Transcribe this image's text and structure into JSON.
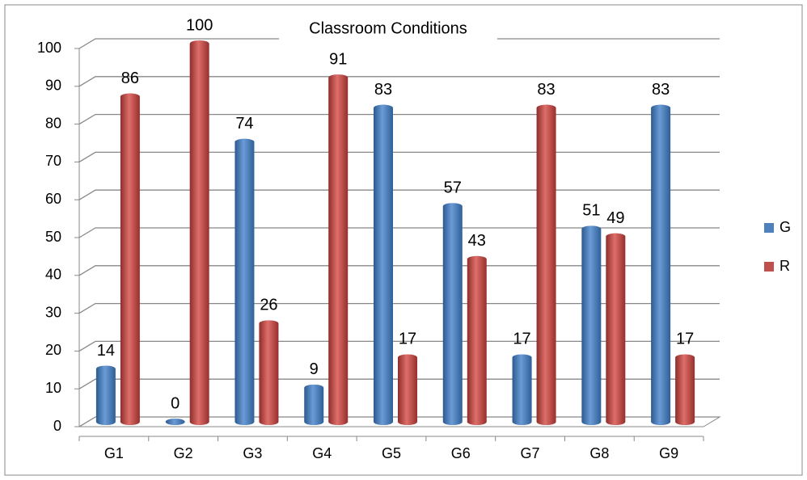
{
  "chart_data": {
    "type": "bar",
    "title": "Classroom Conditions",
    "categories": [
      "G1",
      "G2",
      "G3",
      "G4",
      "G5",
      "G6",
      "G7",
      "G8",
      "G9"
    ],
    "series": [
      {
        "name": "G",
        "color": "#4f81bd",
        "values": [
          14,
          0,
          74,
          9,
          83,
          57,
          17,
          51,
          83
        ]
      },
      {
        "name": "R",
        "color": "#c0504d",
        "values": [
          86,
          100,
          26,
          91,
          17,
          43,
          83,
          49,
          17
        ]
      }
    ],
    "ylim": [
      0,
      100
    ],
    "yticks": [
      0,
      10,
      20,
      30,
      40,
      50,
      60,
      70,
      80,
      90,
      100
    ],
    "grid": true,
    "legend": "right"
  }
}
